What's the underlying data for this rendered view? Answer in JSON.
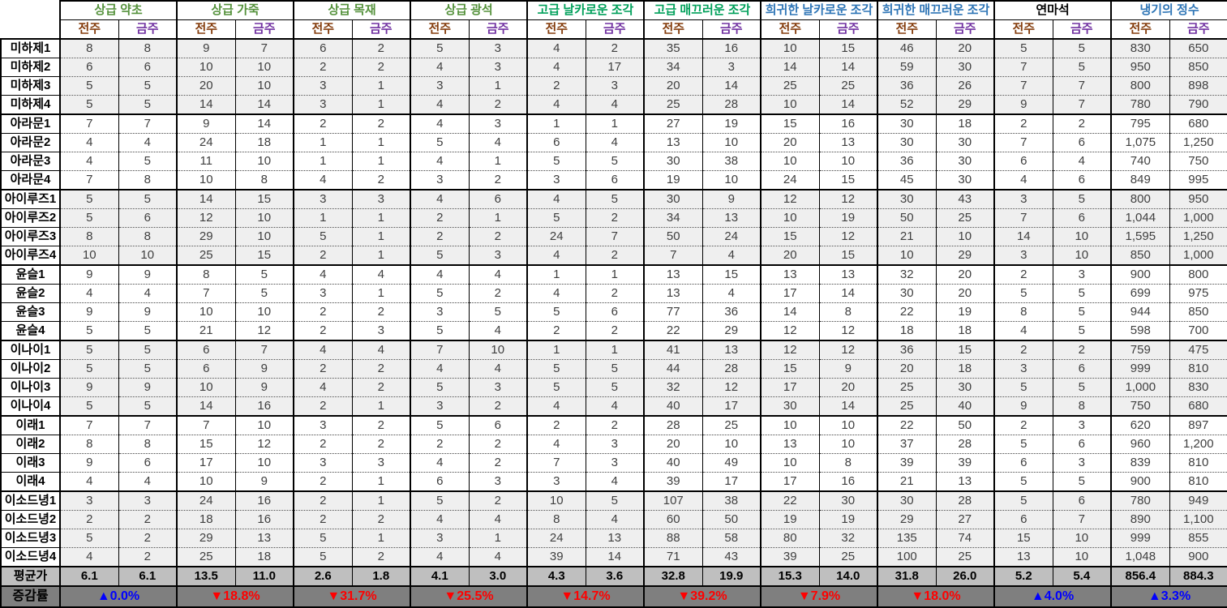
{
  "chart_data": {
    "type": "table",
    "layout": {
      "subcolumns_per_group": 2,
      "row_groups_of": 4,
      "shaded_groups": "alternating starting with first",
      "grid": "solid black group separators, dotted row separators within groups"
    },
    "colors": {
      "basic_group_header": "#55923C",
      "advanced_group_header": "#00A05A",
      "rare_group_header": "#2E75B6",
      "black_group_header": "#000000",
      "prev_header": "#843C0C",
      "curr_header": "#7030A0",
      "up": "#0000FF",
      "down": "#FF0000",
      "shaded_row_bg": "#EFEFEF",
      "avg_row_bg": "#BFBFBF",
      "change_row_bg": "#7F7F7F"
    },
    "column_groups": [
      {
        "label": "상급 약초",
        "color": "#55923C"
      },
      {
        "label": "상급 가죽",
        "color": "#55923C"
      },
      {
        "label": "상급 목재",
        "color": "#55923C"
      },
      {
        "label": "상급 광석",
        "color": "#55923C"
      },
      {
        "label": "고급 날카로운 조각",
        "color": "#00A05A"
      },
      {
        "label": "고급 매끄러운 조각",
        "color": "#00A05A"
      },
      {
        "label": "희귀한 날카로운 조각",
        "color": "#2E75B6"
      },
      {
        "label": "희귀한 매끄러운 조각",
        "color": "#2E75B6"
      },
      {
        "label": "연마석",
        "color": "#000000"
      },
      {
        "label": "냉기의 정수",
        "color": "#2E75B6"
      }
    ],
    "subcolumns": [
      "전주",
      "금주"
    ],
    "rows": [
      {
        "label": "미하제1",
        "shaded": true,
        "values": [
          "8",
          "8",
          "9",
          "7",
          "6",
          "2",
          "5",
          "3",
          "4",
          "2",
          "35",
          "16",
          "10",
          "15",
          "46",
          "20",
          "5",
          "5",
          "830",
          "650"
        ]
      },
      {
        "label": "미하제2",
        "shaded": true,
        "values": [
          "6",
          "6",
          "10",
          "10",
          "2",
          "2",
          "4",
          "3",
          "4",
          "17",
          "34",
          "3",
          "14",
          "14",
          "59",
          "30",
          "7",
          "5",
          "950",
          "850"
        ]
      },
      {
        "label": "미하제3",
        "shaded": true,
        "values": [
          "5",
          "5",
          "20",
          "10",
          "3",
          "1",
          "3",
          "1",
          "2",
          "3",
          "20",
          "14",
          "25",
          "25",
          "36",
          "26",
          "7",
          "7",
          "800",
          "898"
        ]
      },
      {
        "label": "미하제4",
        "shaded": true,
        "values": [
          "5",
          "5",
          "14",
          "14",
          "3",
          "1",
          "4",
          "2",
          "4",
          "4",
          "25",
          "28",
          "10",
          "14",
          "52",
          "29",
          "9",
          "7",
          "780",
          "790"
        ]
      },
      {
        "label": "아라문1",
        "shaded": false,
        "values": [
          "7",
          "7",
          "9",
          "14",
          "2",
          "2",
          "4",
          "3",
          "1",
          "1",
          "27",
          "19",
          "15",
          "16",
          "30",
          "18",
          "2",
          "2",
          "795",
          "680"
        ]
      },
      {
        "label": "아라문2",
        "shaded": false,
        "values": [
          "4",
          "4",
          "24",
          "18",
          "1",
          "1",
          "5",
          "4",
          "6",
          "4",
          "13",
          "10",
          "20",
          "13",
          "30",
          "30",
          "7",
          "6",
          "1,075",
          "1,250"
        ]
      },
      {
        "label": "아라문3",
        "shaded": false,
        "values": [
          "4",
          "5",
          "11",
          "10",
          "1",
          "1",
          "4",
          "1",
          "5",
          "5",
          "30",
          "38",
          "10",
          "10",
          "36",
          "30",
          "6",
          "4",
          "740",
          "750"
        ]
      },
      {
        "label": "아라문4",
        "shaded": false,
        "values": [
          "7",
          "8",
          "10",
          "8",
          "4",
          "2",
          "3",
          "2",
          "3",
          "6",
          "19",
          "10",
          "24",
          "15",
          "45",
          "30",
          "4",
          "6",
          "849",
          "995"
        ]
      },
      {
        "label": "아이루즈1",
        "shaded": true,
        "values": [
          "5",
          "5",
          "14",
          "15",
          "3",
          "3",
          "4",
          "6",
          "4",
          "5",
          "30",
          "9",
          "12",
          "12",
          "30",
          "43",
          "3",
          "5",
          "800",
          "950"
        ]
      },
      {
        "label": "아이루즈2",
        "shaded": true,
        "values": [
          "5",
          "6",
          "12",
          "10",
          "1",
          "1",
          "2",
          "1",
          "5",
          "2",
          "34",
          "13",
          "10",
          "19",
          "50",
          "25",
          "7",
          "6",
          "1,044",
          "1,000"
        ]
      },
      {
        "label": "아이루즈3",
        "shaded": true,
        "values": [
          "8",
          "8",
          "29",
          "10",
          "5",
          "1",
          "2",
          "2",
          "24",
          "7",
          "50",
          "24",
          "15",
          "12",
          "21",
          "10",
          "14",
          "10",
          "1,595",
          "1,250"
        ]
      },
      {
        "label": "아이루즈4",
        "shaded": true,
        "values": [
          "10",
          "10",
          "25",
          "15",
          "2",
          "1",
          "5",
          "3",
          "4",
          "2",
          "7",
          "4",
          "20",
          "15",
          "10",
          "29",
          "3",
          "10",
          "850",
          "1,000"
        ]
      },
      {
        "label": "윤슬1",
        "shaded": false,
        "values": [
          "9",
          "9",
          "8",
          "5",
          "4",
          "4",
          "4",
          "4",
          "1",
          "1",
          "13",
          "15",
          "13",
          "13",
          "32",
          "20",
          "2",
          "3",
          "900",
          "800"
        ]
      },
      {
        "label": "윤슬2",
        "shaded": false,
        "values": [
          "4",
          "4",
          "7",
          "5",
          "3",
          "1",
          "5",
          "2",
          "4",
          "2",
          "13",
          "4",
          "17",
          "14",
          "30",
          "20",
          "5",
          "5",
          "699",
          "975"
        ]
      },
      {
        "label": "윤슬3",
        "shaded": false,
        "values": [
          "9",
          "9",
          "10",
          "10",
          "2",
          "2",
          "3",
          "5",
          "5",
          "6",
          "77",
          "36",
          "14",
          "8",
          "22",
          "19",
          "8",
          "5",
          "944",
          "850"
        ]
      },
      {
        "label": "윤슬4",
        "shaded": false,
        "values": [
          "5",
          "5",
          "21",
          "12",
          "2",
          "3",
          "5",
          "4",
          "2",
          "2",
          "22",
          "29",
          "12",
          "12",
          "18",
          "18",
          "4",
          "5",
          "598",
          "700"
        ]
      },
      {
        "label": "이나이1",
        "shaded": true,
        "values": [
          "5",
          "5",
          "6",
          "7",
          "4",
          "4",
          "7",
          "10",
          "1",
          "1",
          "41",
          "13",
          "12",
          "12",
          "36",
          "15",
          "2",
          "2",
          "759",
          "475"
        ]
      },
      {
        "label": "이나이2",
        "shaded": true,
        "values": [
          "5",
          "5",
          "6",
          "9",
          "2",
          "2",
          "4",
          "4",
          "5",
          "5",
          "44",
          "28",
          "15",
          "9",
          "20",
          "18",
          "3",
          "6",
          "999",
          "810"
        ]
      },
      {
        "label": "이나이3",
        "shaded": true,
        "values": [
          "9",
          "9",
          "10",
          "9",
          "4",
          "2",
          "5",
          "3",
          "5",
          "5",
          "32",
          "12",
          "17",
          "20",
          "25",
          "30",
          "5",
          "5",
          "1,000",
          "830"
        ]
      },
      {
        "label": "이나이4",
        "shaded": true,
        "values": [
          "5",
          "5",
          "14",
          "16",
          "2",
          "1",
          "3",
          "2",
          "4",
          "4",
          "40",
          "17",
          "30",
          "14",
          "25",
          "40",
          "9",
          "8",
          "750",
          "680"
        ]
      },
      {
        "label": "이래1",
        "shaded": false,
        "values": [
          "7",
          "7",
          "7",
          "10",
          "3",
          "2",
          "5",
          "6",
          "2",
          "2",
          "28",
          "25",
          "10",
          "10",
          "22",
          "50",
          "2",
          "3",
          "620",
          "897"
        ]
      },
      {
        "label": "이래2",
        "shaded": false,
        "values": [
          "8",
          "8",
          "15",
          "12",
          "2",
          "2",
          "2",
          "2",
          "4",
          "3",
          "20",
          "10",
          "13",
          "10",
          "37",
          "28",
          "5",
          "6",
          "960",
          "1,200"
        ]
      },
      {
        "label": "이래3",
        "shaded": false,
        "values": [
          "9",
          "6",
          "17",
          "10",
          "3",
          "3",
          "4",
          "2",
          "7",
          "3",
          "40",
          "49",
          "10",
          "8",
          "39",
          "39",
          "6",
          "3",
          "839",
          "810"
        ]
      },
      {
        "label": "이래4",
        "shaded": false,
        "values": [
          "4",
          "4",
          "10",
          "9",
          "2",
          "1",
          "6",
          "3",
          "3",
          "4",
          "39",
          "17",
          "17",
          "16",
          "21",
          "13",
          "5",
          "5",
          "900",
          "810"
        ]
      },
      {
        "label": "이소드녕1",
        "shaded": true,
        "values": [
          "3",
          "3",
          "24",
          "16",
          "2",
          "1",
          "5",
          "2",
          "10",
          "5",
          "107",
          "38",
          "22",
          "30",
          "30",
          "28",
          "5",
          "6",
          "780",
          "949"
        ]
      },
      {
        "label": "이소드녕2",
        "shaded": true,
        "values": [
          "2",
          "2",
          "18",
          "16",
          "2",
          "2",
          "4",
          "4",
          "8",
          "4",
          "60",
          "50",
          "19",
          "19",
          "29",
          "27",
          "6",
          "7",
          "890",
          "1,100"
        ]
      },
      {
        "label": "이소드녕3",
        "shaded": true,
        "values": [
          "5",
          "2",
          "29",
          "13",
          "5",
          "1",
          "3",
          "1",
          "24",
          "13",
          "88",
          "58",
          "80",
          "32",
          "135",
          "74",
          "15",
          "10",
          "999",
          "855"
        ]
      },
      {
        "label": "이소드녕4",
        "shaded": true,
        "values": [
          "4",
          "2",
          "25",
          "18",
          "5",
          "2",
          "4",
          "4",
          "39",
          "14",
          "71",
          "43",
          "39",
          "25",
          "100",
          "25",
          "13",
          "10",
          "1,048",
          "900"
        ]
      }
    ],
    "average_row": {
      "label": "평균가",
      "values": [
        "6.1",
        "6.1",
        "13.5",
        "11.0",
        "2.6",
        "1.8",
        "4.1",
        "3.0",
        "4.3",
        "3.6",
        "32.8",
        "19.9",
        "15.3",
        "14.0",
        "31.8",
        "26.0",
        "5.2",
        "5.4",
        "856.4",
        "884.3"
      ]
    },
    "change_row": {
      "label": "증감률",
      "values": [
        {
          "text": "▲0.0%",
          "direction": "up"
        },
        {
          "text": "▼18.8%",
          "direction": "down"
        },
        {
          "text": "▼31.7%",
          "direction": "down"
        },
        {
          "text": "▼25.5%",
          "direction": "down"
        },
        {
          "text": "▼14.7%",
          "direction": "down"
        },
        {
          "text": "▼39.2%",
          "direction": "down"
        },
        {
          "text": "▼7.9%",
          "direction": "down"
        },
        {
          "text": "▼18.0%",
          "direction": "down"
        },
        {
          "text": "▲4.0%",
          "direction": "up"
        },
        {
          "text": "▲3.3%",
          "direction": "up"
        }
      ]
    }
  }
}
